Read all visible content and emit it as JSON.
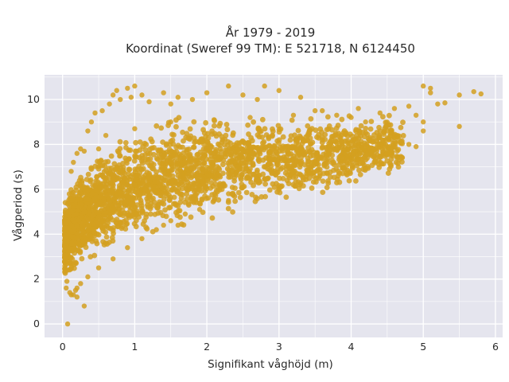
{
  "chart_data": {
    "type": "scatter",
    "title": "År 1979 - 2019",
    "subtitle": "Koordinat (Sweref 99 TM): E 521718, N 6124450",
    "xlabel": "Signifikant våghöjd (m)",
    "ylabel": "Vågperiod (s)",
    "xlim": [
      -0.25,
      6.1
    ],
    "ylim": [
      -0.6,
      11.1
    ],
    "x_ticks": [
      0,
      1,
      2,
      3,
      4,
      5,
      6
    ],
    "y_ticks": [
      0,
      2,
      4,
      6,
      8,
      10
    ],
    "x_tick_labels": [
      "0",
      "1",
      "2",
      "3",
      "4",
      "5",
      "6"
    ],
    "y_tick_labels": [
      "0",
      "2",
      "4",
      "6",
      "8",
      "10"
    ],
    "grid": true,
    "marker_color": "#D4A020",
    "background_color": "#E5E5EE",
    "series": [
      {
        "points": [
          [
            0.05,
            1.6
          ],
          [
            0.06,
            1.9
          ],
          [
            0.07,
            2.4
          ],
          [
            0.08,
            3.2
          ],
          [
            0.08,
            4.0
          ],
          [
            0.09,
            4.8
          ],
          [
            0.1,
            5.6
          ],
          [
            0.1,
            1.4
          ],
          [
            0.12,
            1.3
          ],
          [
            0.15,
            1.3
          ],
          [
            0.18,
            1.5
          ],
          [
            0.07,
            0.0
          ],
          [
            0.12,
            6.8
          ],
          [
            0.15,
            7.2
          ],
          [
            0.2,
            7.6
          ],
          [
            0.25,
            7.8
          ],
          [
            0.3,
            7.7
          ],
          [
            0.35,
            8.6
          ],
          [
            0.4,
            9.0
          ],
          [
            0.45,
            9.4
          ],
          [
            0.55,
            9.5
          ],
          [
            0.65,
            9.8
          ],
          [
            0.7,
            10.2
          ],
          [
            0.75,
            10.4
          ],
          [
            0.8,
            10.0
          ],
          [
            0.9,
            10.5
          ],
          [
            0.95,
            10.1
          ],
          [
            1.0,
            10.6
          ],
          [
            1.1,
            10.2
          ],
          [
            1.2,
            9.9
          ],
          [
            1.4,
            10.3
          ],
          [
            1.5,
            9.8
          ],
          [
            1.6,
            10.1
          ],
          [
            1.8,
            10.0
          ],
          [
            2.0,
            10.3
          ],
          [
            2.3,
            10.6
          ],
          [
            2.5,
            10.2
          ],
          [
            2.8,
            10.6
          ],
          [
            3.0,
            10.4
          ],
          [
            2.7,
            10.0
          ],
          [
            3.3,
            10.1
          ],
          [
            3.5,
            9.5
          ],
          [
            3.8,
            9.3
          ],
          [
            4.0,
            9.2
          ],
          [
            4.2,
            9.0
          ],
          [
            4.4,
            9.4
          ],
          [
            4.6,
            9.6
          ],
          [
            4.8,
            9.7
          ],
          [
            4.9,
            9.3
          ],
          [
            5.0,
            10.6
          ],
          [
            5.1,
            10.5
          ],
          [
            5.1,
            10.3
          ],
          [
            5.2,
            9.8
          ],
          [
            5.3,
            9.85
          ],
          [
            5.5,
            10.2
          ],
          [
            5.7,
            10.35
          ],
          [
            5.8,
            10.25
          ],
          [
            5.5,
            8.8
          ],
          [
            5.0,
            8.6
          ],
          [
            5.0,
            9.0
          ],
          [
            4.8,
            8.0
          ],
          [
            4.9,
            7.9
          ],
          [
            4.6,
            8.4
          ],
          [
            4.5,
            7.6
          ],
          [
            4.3,
            8.1
          ],
          [
            4.1,
            7.9
          ],
          [
            3.9,
            7.4
          ],
          [
            3.7,
            7.6
          ],
          [
            3.5,
            7.2
          ],
          [
            3.3,
            7.1
          ],
          [
            3.1,
            6.9
          ],
          [
            2.9,
            6.7
          ],
          [
            2.7,
            6.4
          ],
          [
            2.5,
            6.1
          ],
          [
            2.3,
            5.8
          ],
          [
            2.1,
            5.5
          ],
          [
            1.9,
            5.1
          ],
          [
            1.7,
            4.9
          ],
          [
            1.5,
            4.6
          ],
          [
            1.3,
            4.2
          ],
          [
            1.1,
            3.8
          ],
          [
            0.9,
            3.4
          ],
          [
            0.7,
            2.9
          ],
          [
            0.5,
            2.5
          ],
          [
            0.35,
            2.1
          ],
          [
            0.25,
            1.8
          ],
          [
            0.2,
            1.6
          ],
          [
            1.6,
            4.4
          ],
          [
            1.4,
            4.4
          ],
          [
            2.3,
            5.5
          ],
          [
            0.3,
            0.8
          ],
          [
            0.2,
            1.2
          ],
          [
            1.0,
            8.7
          ],
          [
            1.5,
            9.0
          ],
          [
            2.1,
            9.1
          ],
          [
            2.6,
            9.2
          ],
          [
            3.2,
            9.3
          ],
          [
            3.6,
            9.5
          ],
          [
            4.1,
            9.6
          ],
          [
            0.6,
            8.4
          ],
          [
            0.5,
            7.8
          ]
        ]
      }
    ]
  }
}
